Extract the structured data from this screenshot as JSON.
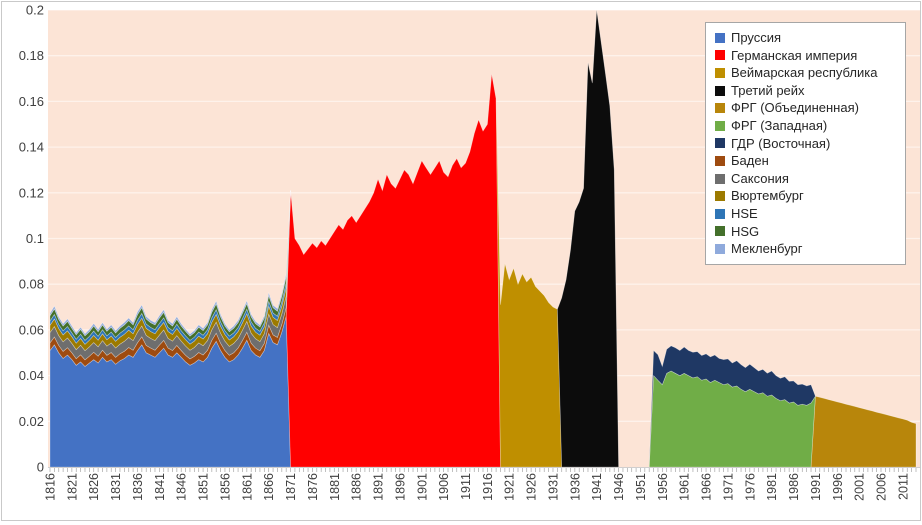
{
  "chart_data": {
    "type": "area",
    "stacked": true,
    "title": "",
    "xlabel": "",
    "ylabel": "",
    "x_start": 1816,
    "x_end": 2014,
    "ylim": [
      0,
      0.2
    ],
    "grid": true,
    "legend_position": "top-right",
    "plot_background": "#FCE4D6",
    "gridline_color": "rgba(255,255,255,0.5)",
    "axis_text_color": "#404040",
    "y_tick_labels": [
      "0",
      "0.02",
      "0.04",
      "0.06",
      "0.08",
      "0.1",
      "0.12",
      "0.14",
      "0.16",
      "0.18",
      "0.2"
    ],
    "y_tick_values": [
      0,
      0.02,
      0.04,
      0.06,
      0.08,
      0.1,
      0.12,
      0.14,
      0.16,
      0.18,
      0.2
    ],
    "x_tick_labels": [
      1816,
      1821,
      1826,
      1831,
      1836,
      1841,
      1846,
      1851,
      1856,
      1861,
      1866,
      1871,
      1876,
      1881,
      1886,
      1891,
      1896,
      1901,
      1906,
      1911,
      1916,
      1921,
      1926,
      1931,
      1936,
      1941,
      1946,
      1951,
      1956,
      1961,
      1966,
      1971,
      1976,
      1981,
      1986,
      1991,
      1996,
      2001,
      2006,
      2011
    ],
    "series": [
      {
        "name": "Пруссия",
        "color": "#4472C4",
        "start": 1816,
        "values": [
          0.051,
          0.0535,
          0.05,
          0.0475,
          0.049,
          0.047,
          0.0445,
          0.046,
          0.044,
          0.0455,
          0.047,
          0.0455,
          0.048,
          0.046,
          0.047,
          0.045,
          0.0465,
          0.0475,
          0.049,
          0.048,
          0.051,
          0.0535,
          0.05,
          0.049,
          0.048,
          0.05,
          0.052,
          0.049,
          0.048,
          0.05,
          0.048,
          0.046,
          0.0445,
          0.0455,
          0.047,
          0.046,
          0.048,
          0.052,
          0.055,
          0.051,
          0.048,
          0.046,
          0.047,
          0.049,
          0.052,
          0.0555,
          0.051,
          0.049,
          0.048,
          0.051,
          0.0585,
          0.0545,
          0.0535,
          0.059,
          0.066
        ]
      },
      {
        "name": "Германская империя",
        "color": "#FF0000",
        "start": 1871,
        "values": [
          0.121,
          0.1,
          0.097,
          0.093,
          0.0955,
          0.098,
          0.096,
          0.099,
          0.097,
          0.1,
          0.103,
          0.106,
          0.104,
          0.108,
          0.11,
          0.107,
          0.11,
          0.113,
          0.116,
          0.12,
          0.126,
          0.121,
          0.128,
          0.124,
          0.122,
          0.126,
          0.13,
          0.128,
          0.124,
          0.129,
          0.134,
          0.131,
          0.128,
          0.131,
          0.134,
          0.129,
          0.127,
          0.132,
          0.135,
          0.131,
          0.133,
          0.138,
          0.146,
          0.152,
          0.147,
          0.15,
          0.172,
          0.161
        ]
      },
      {
        "name": "Веймарская республика",
        "color": "#BF8F00",
        "start": 1919,
        "values": [
          0.071,
          0.089,
          0.082,
          0.087,
          0.08,
          0.0845,
          0.081,
          0.083,
          0.079,
          0.077,
          0.075,
          0.072,
          0.07,
          0.069
        ]
      },
      {
        "name": "Третий рейх",
        "color": "#0C0C0C",
        "start": 1933,
        "values": [
          0.074,
          0.082,
          0.095,
          0.112,
          0.116,
          0.122,
          0.177,
          0.168,
          0.2,
          0.186,
          0.172,
          0.158,
          0.13
        ]
      },
      {
        "name": "ФРГ (Объединенная)",
        "color": "#B8860B",
        "start": 1991,
        "values": [
          0.031,
          0.0305,
          0.03,
          0.0295,
          0.029,
          0.0285,
          0.028,
          0.0275,
          0.027,
          0.0265,
          0.026,
          0.0255,
          0.025,
          0.0245,
          0.024,
          0.0235,
          0.023,
          0.0225,
          0.022,
          0.0215,
          0.021,
          0.0205,
          0.0195,
          0.019
        ]
      },
      {
        "name": "ФРГ (Западная)",
        "color": "#70AD47",
        "start": 1954,
        "values": [
          0.04,
          0.038,
          0.036,
          0.041,
          0.042,
          0.041,
          0.04,
          0.041,
          0.04,
          0.039,
          0.0395,
          0.038,
          0.0385,
          0.037,
          0.038,
          0.037,
          0.036,
          0.0365,
          0.035,
          0.0355,
          0.034,
          0.033,
          0.034,
          0.033,
          0.032,
          0.0325,
          0.031,
          0.0315,
          0.03,
          0.029,
          0.0295,
          0.028,
          0.0285,
          0.027,
          0.0275,
          0.027,
          0.028
        ]
      },
      {
        "name": "ГДР (Восточная)",
        "color": "#1F3864",
        "start": 1954,
        "values": [
          0.011,
          0.0112,
          0.008,
          0.0105,
          0.011,
          0.0112,
          0.011,
          0.0115,
          0.011,
          0.0112,
          0.011,
          0.0108,
          0.011,
          0.0112,
          0.011,
          0.0105,
          0.011,
          0.0108,
          0.0105,
          0.011,
          0.0108,
          0.0105,
          0.011,
          0.0105,
          0.01,
          0.0102,
          0.01,
          0.0105,
          0.01,
          0.0098,
          0.01,
          0.0095,
          0.0092,
          0.009,
          0.0088,
          0.0085,
          0.008
        ]
      },
      {
        "name": "Баден",
        "color": "#9E4B10",
        "start": 1816,
        "values": [
          0.0033,
          0.0034,
          0.0032,
          0.0031,
          0.0032,
          0.003,
          0.0029,
          0.0031,
          0.0029,
          0.003,
          0.0032,
          0.003,
          0.0031,
          0.0029,
          0.0031,
          0.003,
          0.0031,
          0.0032,
          0.0033,
          0.0031,
          0.0034,
          0.0035,
          0.0032,
          0.0031,
          0.0031,
          0.0033,
          0.0034,
          0.0031,
          0.003,
          0.0032,
          0.003,
          0.0029,
          0.0028,
          0.0029,
          0.0031,
          0.003,
          0.0031,
          0.0034,
          0.0036,
          0.0032,
          0.003,
          0.0029,
          0.003,
          0.0031,
          0.0033,
          0.0035,
          0.0032,
          0.003,
          0.0029,
          0.0031,
          0.0036,
          0.0033,
          0.0032,
          0.0034,
          0.0038
        ]
      },
      {
        "name": "Саксония",
        "color": "#6E6E6E",
        "start": 1816,
        "values": [
          0.0045,
          0.0046,
          0.0043,
          0.0042,
          0.0043,
          0.0041,
          0.004,
          0.0042,
          0.004,
          0.0041,
          0.0043,
          0.0041,
          0.0042,
          0.004,
          0.0042,
          0.0041,
          0.0042,
          0.0043,
          0.0044,
          0.0042,
          0.0046,
          0.0047,
          0.0044,
          0.0042,
          0.0042,
          0.0044,
          0.0046,
          0.0042,
          0.0041,
          0.0043,
          0.0041,
          0.004,
          0.0038,
          0.0039,
          0.0042,
          0.0041,
          0.0042,
          0.0046,
          0.0048,
          0.0043,
          0.0041,
          0.0039,
          0.0041,
          0.0042,
          0.0045,
          0.0047,
          0.0043,
          0.0041,
          0.004,
          0.0042,
          0.0048,
          0.0045,
          0.0043,
          0.0046,
          0.0051
        ]
      },
      {
        "name": "Вюртембург",
        "color": "#9C7A00",
        "start": 1816,
        "values": [
          0.0032,
          0.0033,
          0.0031,
          0.003,
          0.0031,
          0.0029,
          0.0028,
          0.003,
          0.0028,
          0.0029,
          0.0031,
          0.0029,
          0.003,
          0.0028,
          0.003,
          0.0029,
          0.003,
          0.0031,
          0.0032,
          0.003,
          0.0033,
          0.0034,
          0.0031,
          0.003,
          0.003,
          0.0032,
          0.0033,
          0.003,
          0.0029,
          0.0031,
          0.0029,
          0.0028,
          0.0027,
          0.0028,
          0.003,
          0.0029,
          0.003,
          0.0033,
          0.0034,
          0.0031,
          0.0029,
          0.0028,
          0.0029,
          0.003,
          0.0032,
          0.0034,
          0.0031,
          0.0029,
          0.0028,
          0.003,
          0.0035,
          0.0032,
          0.0031,
          0.0033,
          0.0036
        ]
      },
      {
        "name": "HSE",
        "color": "#2E75B6",
        "start": 1816,
        "values": [
          0.0019,
          0.002,
          0.0018,
          0.0018,
          0.0019,
          0.0017,
          0.0017,
          0.0018,
          0.0017,
          0.0017,
          0.0019,
          0.0017,
          0.0018,
          0.0017,
          0.0018,
          0.0017,
          0.0018,
          0.0019,
          0.0019,
          0.0018,
          0.002,
          0.0021,
          0.0019,
          0.0018,
          0.0018,
          0.0019,
          0.002,
          0.0018,
          0.0017,
          0.0019,
          0.0017,
          0.0017,
          0.0016,
          0.0017,
          0.0018,
          0.0017,
          0.0018,
          0.002,
          0.0021,
          0.0019,
          0.0017,
          0.0017,
          0.0017,
          0.0018,
          0.0019,
          0.002,
          0.0019,
          0.0017,
          0.0017,
          0.0018,
          0.0021,
          0.0019,
          0.0019,
          0.002,
          0.0022
        ]
      },
      {
        "name": "HSG",
        "color": "#44702B",
        "start": 1816,
        "values": [
          0.0023,
          0.0024,
          0.0022,
          0.0021,
          0.0022,
          0.002,
          0.002,
          0.0021,
          0.002,
          0.002,
          0.0022,
          0.002,
          0.0021,
          0.002,
          0.0021,
          0.002,
          0.0021,
          0.0022,
          0.0023,
          0.0021,
          0.0024,
          0.0025,
          0.0022,
          0.0021,
          0.0021,
          0.0023,
          0.0024,
          0.0021,
          0.002,
          0.0022,
          0.002,
          0.002,
          0.0019,
          0.002,
          0.0021,
          0.002,
          0.0021,
          0.0024,
          0.0025,
          0.0022,
          0.002,
          0.0019,
          0.002,
          0.0021,
          0.0023,
          0.0024,
          0.0022,
          0.002,
          0.0019,
          0.0021,
          0.0025,
          0.0023,
          0.0022,
          0.0024,
          0.0026
        ]
      },
      {
        "name": "Мекленбург",
        "color": "#8FAADC",
        "start": 1816,
        "values": [
          0.0011,
          0.0012,
          0.0011,
          0.001,
          0.0011,
          0.001,
          0.0009,
          0.001,
          0.0009,
          0.001,
          0.0011,
          0.001,
          0.001,
          0.0009,
          0.001,
          0.001,
          0.001,
          0.0011,
          0.0011,
          0.001,
          0.0012,
          0.0012,
          0.0011,
          0.001,
          0.001,
          0.0011,
          0.0012,
          0.001,
          0.001,
          0.0011,
          0.001,
          0.0009,
          0.0009,
          0.0009,
          0.001,
          0.001,
          0.001,
          0.0012,
          0.0012,
          0.0011,
          0.001,
          0.0009,
          0.001,
          0.001,
          0.0011,
          0.0012,
          0.0011,
          0.001,
          0.0009,
          0.001,
          0.0012,
          0.0011,
          0.0011,
          0.0012,
          0.0013
        ]
      }
    ]
  }
}
